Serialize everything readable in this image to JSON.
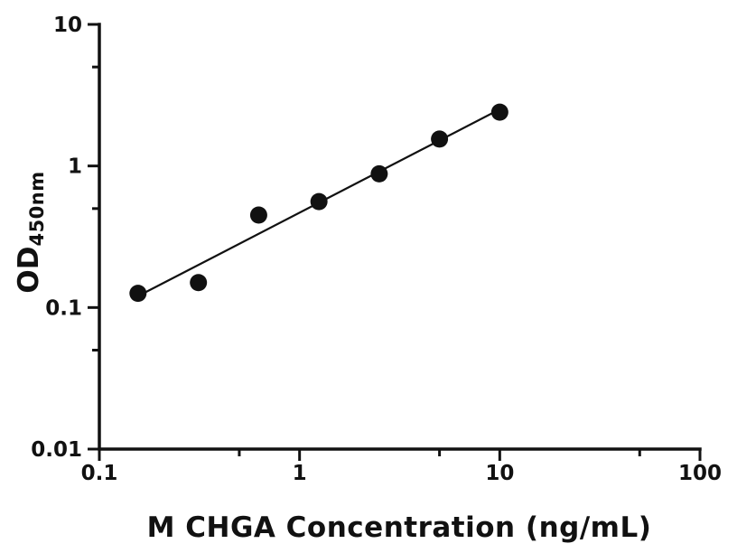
{
  "chart_data": {
    "type": "scatter",
    "title": "",
    "xlabel": "M CHGA Concentration (ng/mL)",
    "ylabel_main": "OD",
    "ylabel_sub": "450nm",
    "xscale": "log",
    "yscale": "log",
    "xlim": [
      0.1,
      100
    ],
    "ylim": [
      0.01,
      10
    ],
    "x": [
      0.156,
      0.3125,
      0.625,
      1.25,
      2.5,
      5,
      10
    ],
    "y": [
      0.126,
      0.15,
      0.45,
      0.56,
      0.88,
      1.55,
      2.4
    ],
    "trendline": {
      "x": [
        0.15,
        10.2
      ],
      "y": [
        0.117,
        2.55
      ]
    },
    "x_major_ticks": [
      0.1,
      1,
      10,
      100
    ],
    "x_tick_labels": [
      "0.1",
      "1",
      "10",
      "100"
    ],
    "x_minor_ticks": [
      0.5,
      5,
      50
    ],
    "y_major_ticks": [
      0.01,
      0.1,
      1,
      10
    ],
    "y_tick_labels": [
      "0.01",
      "0.1",
      "1",
      "10"
    ],
    "y_minor_ticks": [
      0.05,
      0.5,
      5
    ],
    "grid": "off",
    "legend": "none",
    "axis_color": "#111111",
    "marker_color": "#111111",
    "line_color": "#111111",
    "background_color": "#ffffff"
  }
}
